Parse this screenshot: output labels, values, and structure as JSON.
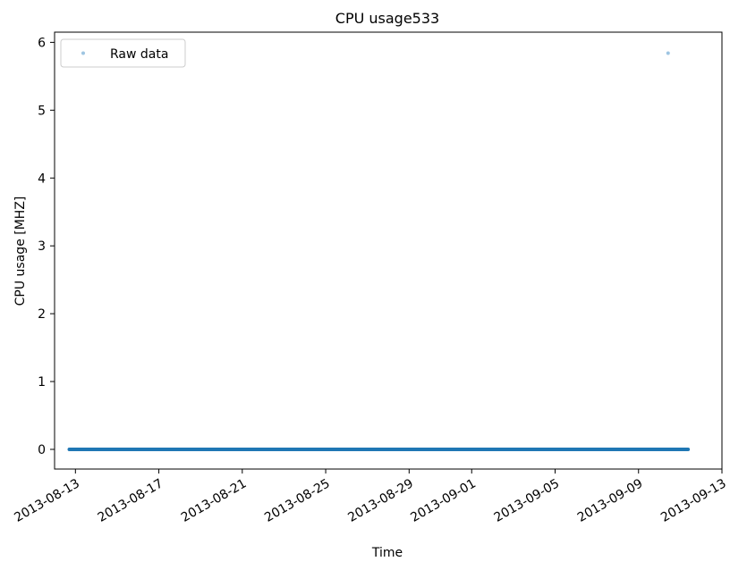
{
  "chart_data": {
    "type": "scatter",
    "title": "CPU usage533",
    "xlabel": "Time",
    "ylabel": "CPU usage [MHZ]",
    "x_range": [
      "2013-08-12 00:00",
      "2013-09-13 00:00"
    ],
    "ylim": [
      -0.29,
      6.15
    ],
    "x_ticks": [
      "2013-08-13",
      "2013-08-17",
      "2013-08-21",
      "2013-08-25",
      "2013-08-29",
      "2013-09-01",
      "2013-09-05",
      "2013-09-09",
      "2013-09-13"
    ],
    "y_ticks": [
      0,
      1,
      2,
      3,
      4,
      5,
      6
    ],
    "grid": false,
    "legend_placement": "top-left",
    "series": [
      {
        "name": "Raw data",
        "color": "#1f77b4",
        "legend_marker_color": "#9ec5e2",
        "baseline": {
          "value": 0,
          "start": "2013-08-12 17:00",
          "end": "2013-09-11 09:00"
        },
        "outliers": [
          {
            "x": "2013-09-10 10:00",
            "y": 5.84
          }
        ]
      }
    ]
  }
}
